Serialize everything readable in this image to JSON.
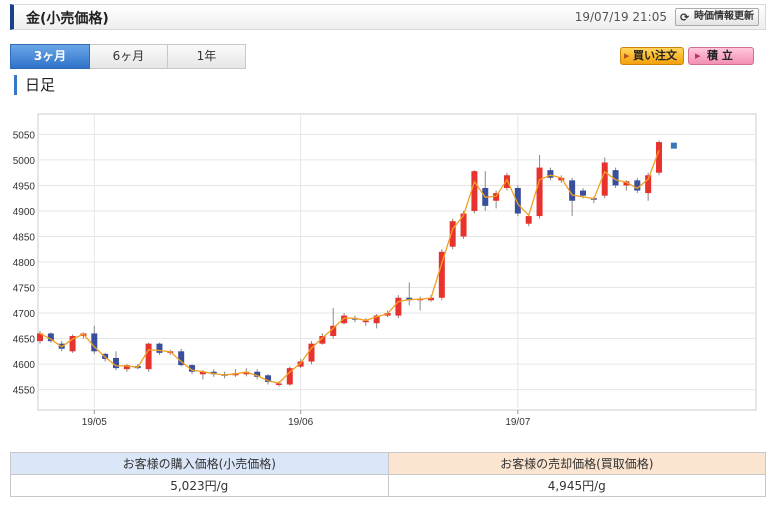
{
  "header": {
    "title": "金(小売価格)",
    "datetime": "19/07/19 21:05",
    "refresh_label": "時価情報更新"
  },
  "tabs": [
    {
      "label": "3ヶ月",
      "active": true
    },
    {
      "label": "6ヶ月",
      "active": false
    },
    {
      "label": "1年",
      "active": false
    }
  ],
  "actions": {
    "buy_label": "買い注文",
    "accumulate_label": "積 立"
  },
  "section": {
    "title": "日足"
  },
  "colors": {
    "up": "#e8322e",
    "down": "#3a4f9c",
    "ma_line": "#f0a020",
    "last_marker": "#3a78b8"
  },
  "chart_data": {
    "type": "candlestick",
    "x_labels": [
      "19/05",
      "19/06",
      "19/07"
    ],
    "y_ticks": [
      4550,
      4600,
      4650,
      4700,
      4750,
      4800,
      4850,
      4900,
      4950,
      5000,
      5050
    ],
    "ylim": [
      4510,
      5090
    ],
    "grid": true,
    "candles": [
      {
        "o": 4645,
        "c": 4660,
        "h": 4665,
        "l": 4640
      },
      {
        "o": 4660,
        "c": 4645,
        "h": 4662,
        "l": 4642
      },
      {
        "o": 4640,
        "c": 4630,
        "h": 4645,
        "l": 4625
      },
      {
        "o": 4625,
        "c": 4655,
        "h": 4658,
        "l": 4622
      },
      {
        "o": 4655,
        "c": 4660,
        "h": 4662,
        "l": 4650
      },
      {
        "o": 4660,
        "c": 4625,
        "h": 4675,
        "l": 4620
      },
      {
        "o": 4620,
        "c": 4610,
        "h": 4622,
        "l": 4605
      },
      {
        "o": 4612,
        "c": 4592,
        "h": 4625,
        "l": 4588
      },
      {
        "o": 4590,
        "c": 4598,
        "h": 4600,
        "l": 4585
      },
      {
        "o": 4596,
        "c": 4592,
        "h": 4600,
        "l": 4590
      },
      {
        "o": 4590,
        "c": 4640,
        "h": 4642,
        "l": 4585
      },
      {
        "o": 4640,
        "c": 4622,
        "h": 4642,
        "l": 4618
      },
      {
        "o": 4622,
        "c": 4625,
        "h": 4628,
        "l": 4618
      },
      {
        "o": 4625,
        "c": 4598,
        "h": 4630,
        "l": 4595
      },
      {
        "o": 4598,
        "c": 4585,
        "h": 4600,
        "l": 4580
      },
      {
        "o": 4580,
        "c": 4585,
        "h": 4588,
        "l": 4570
      },
      {
        "o": 4585,
        "c": 4580,
        "h": 4590,
        "l": 4575
      },
      {
        "o": 4580,
        "c": 4578,
        "h": 4585,
        "l": 4572
      },
      {
        "o": 4578,
        "c": 4582,
        "h": 4590,
        "l": 4575
      },
      {
        "o": 4580,
        "c": 4585,
        "h": 4592,
        "l": 4576
      },
      {
        "o": 4585,
        "c": 4575,
        "h": 4590,
        "l": 4570
      },
      {
        "o": 4578,
        "c": 4565,
        "h": 4580,
        "l": 4560
      },
      {
        "o": 4560,
        "c": 4562,
        "h": 4566,
        "l": 4556
      },
      {
        "o": 4560,
        "c": 4592,
        "h": 4595,
        "l": 4558
      },
      {
        "o": 4595,
        "c": 4605,
        "h": 4610,
        "l": 4592
      },
      {
        "o": 4605,
        "c": 4640,
        "h": 4645,
        "l": 4600
      },
      {
        "o": 4640,
        "c": 4655,
        "h": 4660,
        "l": 4638
      },
      {
        "o": 4655,
        "c": 4675,
        "h": 4710,
        "l": 4650
      },
      {
        "o": 4680,
        "c": 4695,
        "h": 4700,
        "l": 4678
      },
      {
        "o": 4690,
        "c": 4688,
        "h": 4695,
        "l": 4682
      },
      {
        "o": 4685,
        "c": 4685,
        "h": 4690,
        "l": 4675
      },
      {
        "o": 4680,
        "c": 4695,
        "h": 4698,
        "l": 4670
      },
      {
        "o": 4695,
        "c": 4700,
        "h": 4705,
        "l": 4692
      },
      {
        "o": 4695,
        "c": 4730,
        "h": 4735,
        "l": 4690
      },
      {
        "o": 4730,
        "c": 4725,
        "h": 4760,
        "l": 4715
      },
      {
        "o": 4725,
        "c": 4728,
        "h": 4732,
        "l": 4705
      },
      {
        "o": 4725,
        "c": 4730,
        "h": 4735,
        "l": 4722
      },
      {
        "o": 4730,
        "c": 4820,
        "h": 4825,
        "l": 4725
      },
      {
        "o": 4830,
        "c": 4880,
        "h": 4885,
        "l": 4825
      },
      {
        "o": 4850,
        "c": 4895,
        "h": 4900,
        "l": 4845
      },
      {
        "o": 4900,
        "c": 4978,
        "h": 4980,
        "l": 4895
      },
      {
        "o": 4945,
        "c": 4910,
        "h": 4978,
        "l": 4900
      },
      {
        "o": 4920,
        "c": 4935,
        "h": 4940,
        "l": 4905
      },
      {
        "o": 4945,
        "c": 4970,
        "h": 4975,
        "l": 4940
      },
      {
        "o": 4945,
        "c": 4895,
        "h": 4950,
        "l": 4890
      },
      {
        "o": 4875,
        "c": 4890,
        "h": 4895,
        "l": 4870
      },
      {
        "o": 4890,
        "c": 4985,
        "h": 5010,
        "l": 4885
      },
      {
        "o": 4980,
        "c": 4965,
        "h": 4985,
        "l": 4960
      },
      {
        "o": 4960,
        "c": 4965,
        "h": 4970,
        "l": 4955
      },
      {
        "o": 4960,
        "c": 4920,
        "h": 4965,
        "l": 4890
      },
      {
        "o": 4940,
        "c": 4930,
        "h": 4945,
        "l": 4925
      },
      {
        "o": 4925,
        "c": 4922,
        "h": 4928,
        "l": 4915
      },
      {
        "o": 4930,
        "c": 4995,
        "h": 5005,
        "l": 4925
      },
      {
        "o": 4980,
        "c": 4950,
        "h": 4985,
        "l": 4945
      },
      {
        "o": 4950,
        "c": 4958,
        "h": 4960,
        "l": 4940
      },
      {
        "o": 4960,
        "c": 4940,
        "h": 4965,
        "l": 4935
      },
      {
        "o": 4935,
        "c": 4970,
        "h": 4975,
        "l": 4920
      },
      {
        "o": 4975,
        "c": 5035,
        "h": 5038,
        "l": 4970
      }
    ],
    "last_marker": 5028
  },
  "prices": {
    "buy_header": "お客様の購入価格(小売価格)",
    "sell_header": "お客様の売却価格(買取価格)",
    "buy_value": "5,023円/g",
    "sell_value": "4,945円/g"
  }
}
